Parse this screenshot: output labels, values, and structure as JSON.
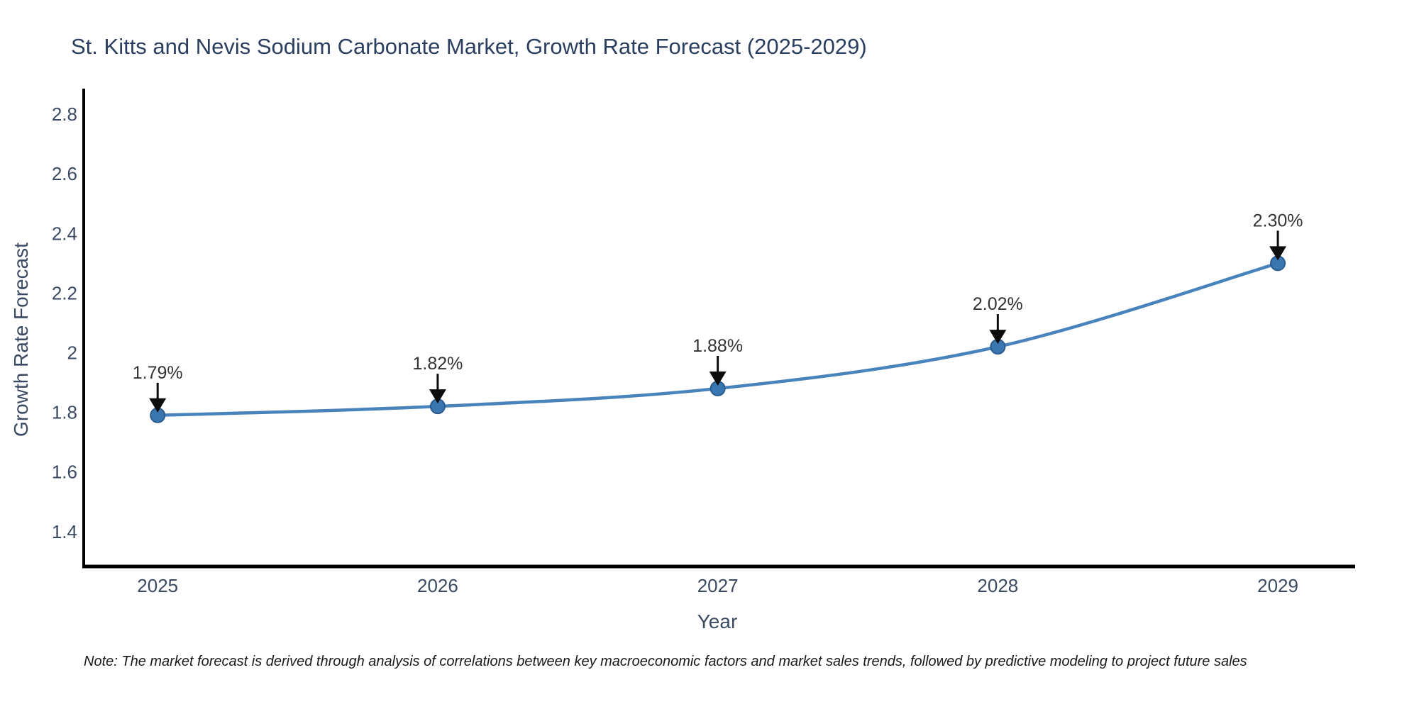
{
  "chart_data": {
    "type": "line",
    "title": "St. Kitts and Nevis Sodium Carbonate Market, Growth Rate Forecast (2025-2029)",
    "xlabel": "Year",
    "ylabel": "Growth Rate Forecast",
    "categories": [
      "2025",
      "2026",
      "2027",
      "2028",
      "2029"
    ],
    "series": [
      {
        "name": "Growth Rate Forecast",
        "values": [
          1.79,
          1.82,
          1.88,
          2.02,
          2.3
        ],
        "point_labels": [
          "1.79%",
          "1.82%",
          "1.88%",
          "2.02%",
          "2.30%"
        ]
      }
    ],
    "y_ticks": [
      "2.8",
      "2.6",
      "2.4",
      "2.2",
      "2",
      "1.8",
      "1.6",
      "1.4"
    ],
    "y_tick_values": [
      2.8,
      2.6,
      2.4,
      2.2,
      2.0,
      1.8,
      1.6,
      1.4
    ],
    "ylim": [
      1.283,
      2.881
    ],
    "xlim": [
      -0.264,
      4.276
    ],
    "grid": false,
    "legend_position": "none",
    "line_smoothing": "spline",
    "colors": {
      "line": "#4884bb",
      "marker_fill": "#3a76af",
      "marker_edge": "#2b5c8f",
      "axis": "#000000",
      "tick_text": "#3b4a63",
      "annotation_text": "#333333",
      "arrow": "#0d0d0d",
      "title_text": "#2a3f5f"
    }
  },
  "note": {
    "text": "Note: The market forecast is derived through analysis of correlations between key macroeconomic factors and market sales trends, followed by predictive modeling to project future sales"
  }
}
